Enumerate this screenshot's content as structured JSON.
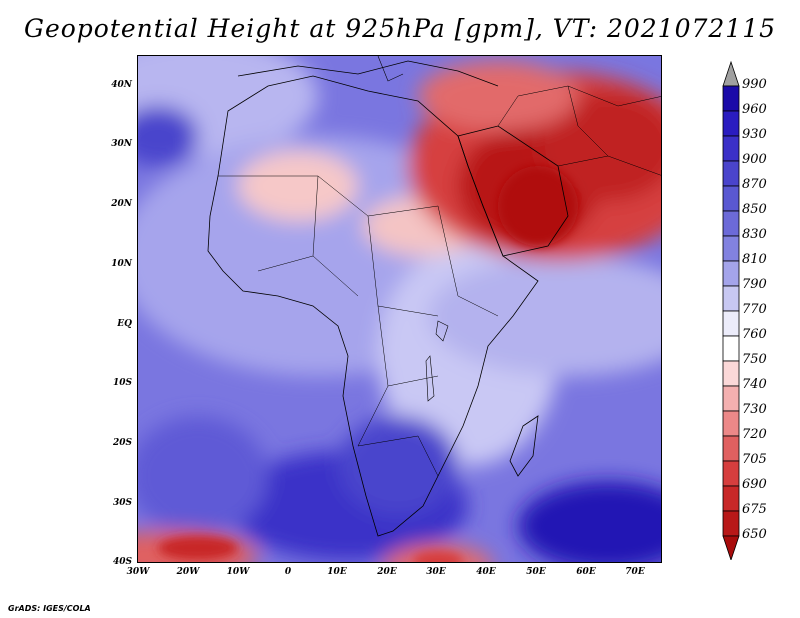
{
  "title": "Geopotential Height at 925hPa [gpm], VT: 2021072115",
  "credit": "GrADS: IGES/COLA",
  "lat_ticks": [
    "40N",
    "30N",
    "20N",
    "10N",
    "EQ",
    "10S",
    "20S",
    "30S",
    "40S"
  ],
  "lon_ticks": [
    "30W",
    "20W",
    "10W",
    "0",
    "10E",
    "20E",
    "30E",
    "40E",
    "50E",
    "60E",
    "70E"
  ],
  "colorbar": {
    "labels": [
      "990",
      "960",
      "930",
      "900",
      "870",
      "850",
      "830",
      "810",
      "790",
      "770",
      "760",
      "750",
      "740",
      "730",
      "720",
      "705",
      "690",
      "675",
      "650"
    ],
    "colors": [
      "#a0a0a0",
      "#1a0aa8",
      "#2a1cc0",
      "#3b30c8",
      "#4a44cc",
      "#5a58d2",
      "#6c6ad8",
      "#8282e0",
      "#a4a4ea",
      "#c8c8f2",
      "#ececfa",
      "#ffffff",
      "#fbd8d8",
      "#f4b0b0",
      "#ec8888",
      "#e06060",
      "#d63e3e",
      "#c82828",
      "#b81818",
      "#a80c0c"
    ]
  },
  "legend_icons": {
    "top": "triangle-up-icon",
    "bottom": "triangle-down-icon"
  }
}
